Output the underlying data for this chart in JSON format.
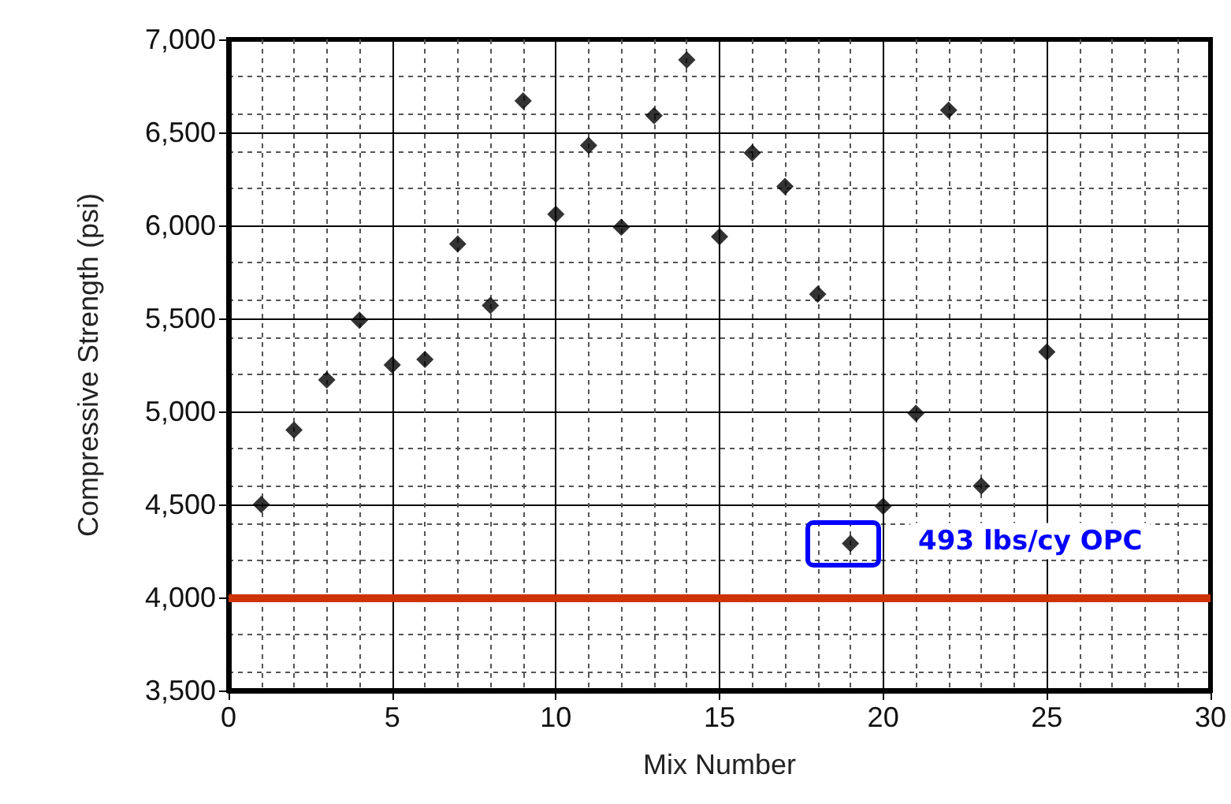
{
  "chart_data": {
    "type": "scatter",
    "xlabel": "Mix Number",
    "ylabel": "Compressive Strength (psi)",
    "x": [
      1,
      2,
      3,
      4,
      5,
      6,
      7,
      8,
      9,
      10,
      11,
      12,
      13,
      14,
      15,
      16,
      17,
      18,
      19,
      20,
      21,
      22,
      23,
      25
    ],
    "series": [
      {
        "color": "#000000",
        "values": [
          4500,
          4900,
          5170,
          5490,
          5250,
          5280,
          5900,
          5570,
          6670,
          6060,
          6430,
          5990,
          6590,
          6890,
          5940,
          6390,
          6210,
          5630,
          4290,
          4490,
          4990,
          6620,
          4600,
          5320
        ]
      }
    ],
    "xlim": [
      0,
      30
    ],
    "xticks": [
      0,
      5,
      10,
      15,
      20,
      25,
      30
    ],
    "ylim": [
      3500,
      7000
    ],
    "yticks": [
      {
        "value": 3500,
        "label": "3,500"
      },
      {
        "value": 4000,
        "label": "4,000"
      },
      {
        "value": 4500,
        "label": "4,500"
      },
      {
        "value": 5000,
        "label": "5,000"
      },
      {
        "value": 5500,
        "label": "5,500"
      },
      {
        "value": 6000,
        "label": "6,000"
      },
      {
        "value": 6500,
        "label": "6,500"
      },
      {
        "value": 7000,
        "label": "7,000"
      }
    ],
    "ref_lines": [
      {
        "axis": "y",
        "value": 4000,
        "color": "#cc3300"
      }
    ],
    "annotations": [
      {
        "text": "493 lbs/cy OPC",
        "x": 19,
        "y": 4290
      }
    ],
    "grid": true,
    "marker": "diamond"
  }
}
